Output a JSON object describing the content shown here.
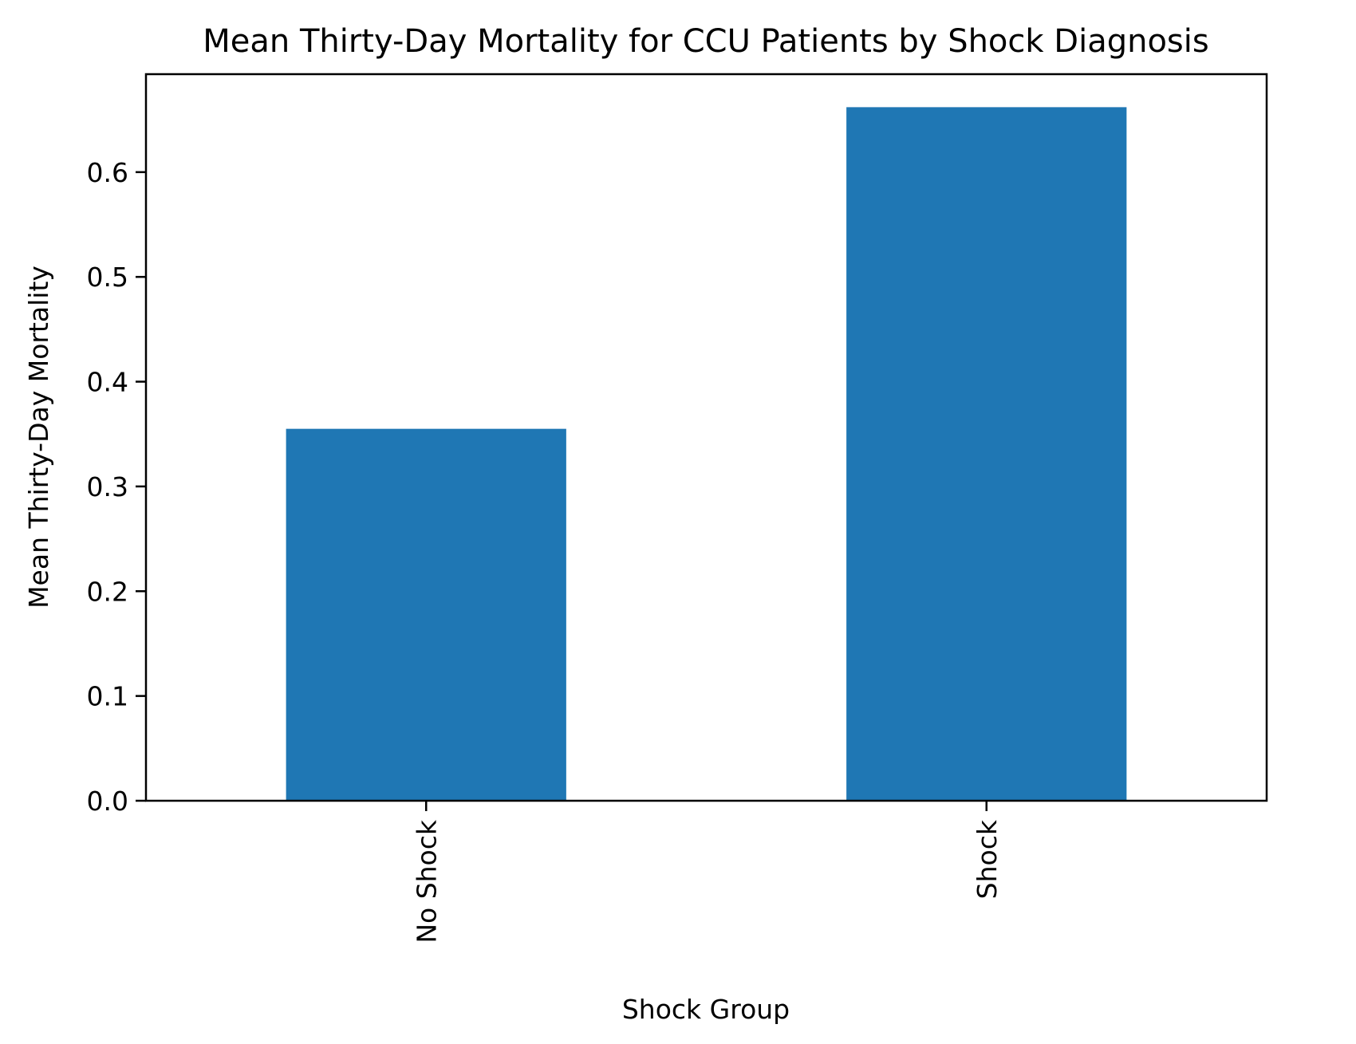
{
  "chart_data": {
    "type": "bar",
    "title": "Mean Thirty-Day Mortality for CCU Patients by Shock Diagnosis",
    "xlabel": "Shock Group",
    "ylabel": "Mean Thirty-Day Mortality",
    "categories": [
      "No Shock",
      "Shock"
    ],
    "values": [
      0.355,
      0.662
    ],
    "ylim": [
      0,
      0.6935
    ],
    "yticks": [
      0.0,
      0.1,
      0.2,
      0.3,
      0.4,
      0.5,
      0.6
    ],
    "ytick_labels": [
      "0.0",
      "0.1",
      "0.2",
      "0.3",
      "0.4",
      "0.5",
      "0.6"
    ],
    "bar_color": "#1f77b4",
    "grid": false,
    "legend": "none"
  }
}
